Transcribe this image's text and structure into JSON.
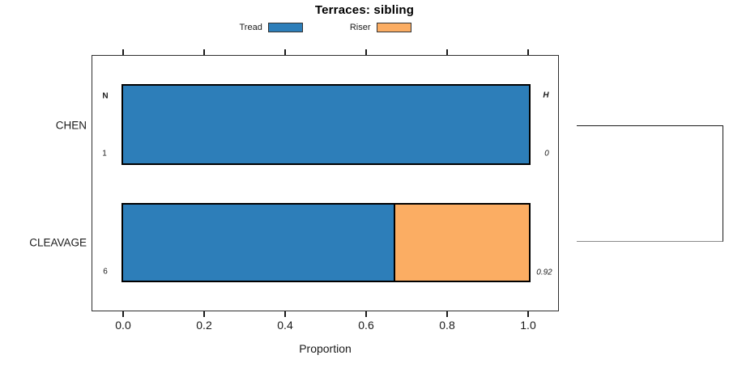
{
  "title": "Terraces: sibling",
  "legend": {
    "items": [
      {
        "label": "Tread",
        "color": "#2d7eb9"
      },
      {
        "label": "Riser",
        "color": "#fbad63"
      }
    ]
  },
  "axes": {
    "xlabel": "Proportion",
    "x_ticks": [
      "0.0",
      "0.2",
      "0.4",
      "0.6",
      "0.8",
      "1.0"
    ]
  },
  "columns": {
    "n_header": "N",
    "h_header": "H"
  },
  "rows": [
    {
      "label": "CHEN",
      "n": "1",
      "h": "0"
    },
    {
      "label": "CLEAVAGE",
      "n": "6",
      "h": "0.92"
    }
  ],
  "chart_data": {
    "type": "bar",
    "orientation": "horizontal",
    "stacked": true,
    "title": "Terraces: sibling",
    "categories": [
      "CHEN",
      "CLEAVAGE"
    ],
    "series": [
      {
        "name": "Tread",
        "color": "#2d7eb9",
        "values": [
          1.0,
          0.667
        ]
      },
      {
        "name": "Riser",
        "color": "#fbad63",
        "values": [
          0.0,
          0.333
        ]
      }
    ],
    "xlabel": "Proportion",
    "xlim": [
      0,
      1
    ],
    "x_tick_values": [
      0.0,
      0.2,
      0.4,
      0.6,
      0.8,
      1.0
    ],
    "annotations": {
      "N": [
        "1",
        "6"
      ],
      "H": [
        "0",
        "0.92"
      ]
    },
    "legend_position": "top",
    "grid": false,
    "dendrogram": {
      "joins": [
        "CHEN",
        "CLEAVAGE"
      ],
      "side": "right"
    }
  }
}
